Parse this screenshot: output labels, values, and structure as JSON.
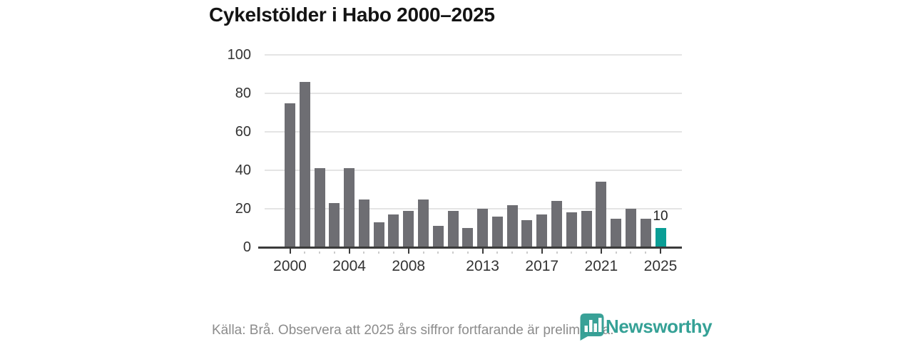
{
  "header": {
    "title": "Cykelstölder i Habo 2000–2025"
  },
  "chart_data": {
    "type": "bar",
    "title": "Cykelstölder i Habo 2000–2025",
    "categories": [
      "2000",
      "2001",
      "2002",
      "2003",
      "2004",
      "2005",
      "2006",
      "2007",
      "2008",
      "2009",
      "2010",
      "2011",
      "2012",
      "2013",
      "2014",
      "2015",
      "2016",
      "2017",
      "2018",
      "2019",
      "2020",
      "2021",
      "2022",
      "2023",
      "2024",
      "2025"
    ],
    "values": [
      75,
      86,
      41,
      23,
      41,
      25,
      13,
      17,
      19,
      25,
      11,
      19,
      10,
      20,
      16,
      22,
      14,
      17,
      24,
      18,
      19,
      34,
      15,
      20,
      15,
      10
    ],
    "xlabel": "",
    "ylabel": "",
    "ylim": [
      0,
      100
    ],
    "yticks": [
      0,
      20,
      40,
      60,
      80,
      100
    ],
    "xtick_labels": [
      "2000",
      "2004",
      "2008",
      "2013",
      "2017",
      "2021",
      "2025"
    ],
    "xtick_indices": [
      0,
      4,
      8,
      13,
      17,
      21,
      25
    ],
    "highlight_index": 25,
    "highlight_value_label": "10",
    "grid": true,
    "legend": false,
    "bar_color": "#6e6e73",
    "highlight_color": "#0a9e96"
  },
  "footer": {
    "source_note": "Källa: Brå. Observera att 2025 års siffror fortfarande är preliminära.",
    "brand": "Newsworthy"
  },
  "colors": {
    "title": "#141414",
    "axis": "#3b3b3b",
    "axis_text": "#333333",
    "gridline": "#e4e4e4",
    "source_text": "#8c8c8c",
    "brand_teal": "#2b9c91"
  }
}
